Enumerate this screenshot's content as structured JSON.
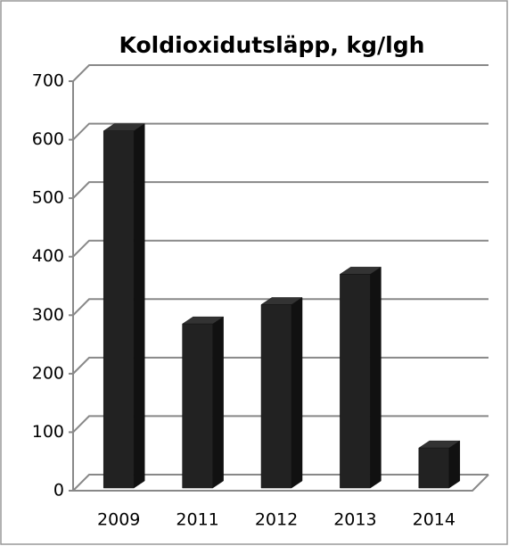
{
  "chart_data": {
    "type": "bar",
    "title": "Koldioxidutsläpp, kg/lgh",
    "categories": [
      "2009",
      "2011",
      "2012",
      "2013",
      "2014"
    ],
    "values": [
      615,
      285,
      318,
      370,
      73
    ],
    "color": "#222222",
    "ylim": [
      0,
      700
    ],
    "yticks": [
      0,
      100,
      200,
      300,
      400,
      500,
      600,
      700
    ],
    "grid": true
  }
}
